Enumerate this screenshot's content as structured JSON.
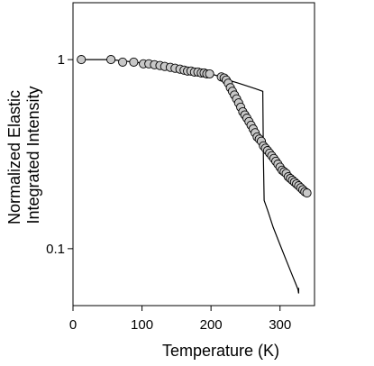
{
  "chart_data": {
    "type": "scatter",
    "title": "",
    "xlabel": "Temperature (K)",
    "ylabel_lines": [
      "Normalized Elastic",
      "Integrated Intensity"
    ],
    "xlim": [
      0,
      350
    ],
    "ylim": [
      0.05,
      2.0
    ],
    "yscale": "log",
    "grid": false,
    "x_ticks": [
      0,
      100,
      200,
      300
    ],
    "y_ticks": [
      0.1,
      1
    ],
    "x_tick_labels": [
      "0",
      "100",
      "200",
      "300"
    ],
    "y_tick_labels": [
      "0.1",
      "1"
    ],
    "colors": {
      "marker_fill": "#c8c8c8",
      "marker_edge": "#000000",
      "line": "#000000",
      "axis": "#000000"
    },
    "series": [
      {
        "kind": "points",
        "points": [
          [
            12,
            1.0
          ],
          [
            55,
            1.0
          ],
          [
            72,
            0.97
          ],
          [
            88,
            0.97
          ],
          [
            102,
            0.95
          ],
          [
            110,
            0.95
          ],
          [
            118,
            0.94
          ],
          [
            126,
            0.93
          ],
          [
            133,
            0.92
          ],
          [
            141,
            0.91
          ],
          [
            148,
            0.9
          ],
          [
            155,
            0.89
          ],
          [
            161,
            0.88
          ],
          [
            166,
            0.87
          ],
          [
            171,
            0.87
          ],
          [
            176,
            0.86
          ],
          [
            181,
            0.86
          ],
          [
            186,
            0.85
          ],
          [
            190,
            0.85
          ],
          [
            194,
            0.84
          ],
          [
            198,
            0.84
          ],
          [
            215,
            0.81
          ],
          [
            219,
            0.8
          ],
          [
            222,
            0.78
          ],
          [
            225,
            0.75
          ],
          [
            228,
            0.71
          ],
          [
            231,
            0.68
          ],
          [
            234,
            0.65
          ],
          [
            237,
            0.62
          ],
          [
            240,
            0.59
          ],
          [
            243,
            0.56
          ],
          [
            246,
            0.53
          ],
          [
            249,
            0.51
          ],
          [
            252,
            0.49
          ],
          [
            255,
            0.47
          ],
          [
            258,
            0.45
          ],
          [
            261,
            0.43
          ],
          [
            264,
            0.41
          ],
          [
            267,
            0.39
          ],
          [
            270,
            0.38
          ],
          [
            273,
            0.37
          ],
          [
            276,
            0.35
          ],
          [
            279,
            0.34
          ],
          [
            282,
            0.33
          ],
          [
            285,
            0.32
          ],
          [
            288,
            0.31
          ],
          [
            291,
            0.3
          ],
          [
            294,
            0.29
          ],
          [
            297,
            0.28
          ],
          [
            300,
            0.27
          ],
          [
            303,
            0.26
          ],
          [
            306,
            0.255
          ],
          [
            309,
            0.25
          ],
          [
            312,
            0.24
          ],
          [
            315,
            0.235
          ],
          [
            318,
            0.23
          ],
          [
            321,
            0.225
          ],
          [
            324,
            0.22
          ],
          [
            327,
            0.215
          ],
          [
            330,
            0.21
          ],
          [
            333,
            0.205
          ],
          [
            336,
            0.2
          ],
          [
            339,
            0.197
          ]
        ]
      },
      {
        "kind": "line",
        "points": [
          [
            12,
            1.0
          ],
          [
            55,
            1.0
          ],
          [
            100,
            0.96
          ],
          [
            150,
            0.9
          ],
          [
            200,
            0.84
          ],
          [
            215,
            0.81
          ],
          [
            225,
            0.78
          ],
          [
            240,
            0.75
          ],
          [
            255,
            0.72
          ],
          [
            265,
            0.7
          ],
          [
            275,
            0.68
          ],
          [
            276,
            0.3
          ],
          [
            277,
            0.18
          ],
          [
            282,
            0.16
          ],
          [
            290,
            0.13
          ],
          [
            300,
            0.105
          ],
          [
            310,
            0.085
          ],
          [
            318,
            0.072
          ],
          [
            323,
            0.065
          ],
          [
            326,
            0.061
          ],
          [
            327,
            0.058
          ],
          [
            327,
            0.062
          ]
        ]
      }
    ]
  }
}
